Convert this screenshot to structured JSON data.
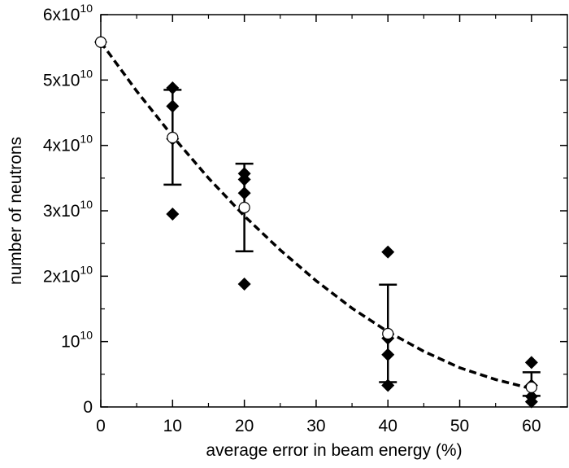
{
  "chart_data": {
    "type": "scatter",
    "xlabel": "average error in beam energy (%)",
    "ylabel": "number of neutrons",
    "xlim": [
      0,
      65
    ],
    "ylim": [
      0,
      60000000000.0
    ],
    "grid": false,
    "x_ticks": [
      {
        "value": 0,
        "label": "0"
      },
      {
        "value": 10,
        "label": "10"
      },
      {
        "value": 20,
        "label": "20"
      },
      {
        "value": 30,
        "label": "30"
      },
      {
        "value": 40,
        "label": "40"
      },
      {
        "value": 50,
        "label": "50"
      },
      {
        "value": 60,
        "label": "60"
      }
    ],
    "y_ticks": [
      {
        "value": 0,
        "mantissa": "",
        "base": "0",
        "exp": ""
      },
      {
        "value": 10000000000.0,
        "mantissa": "",
        "base": "10",
        "exp": "10"
      },
      {
        "value": 20000000000.0,
        "mantissa": "2x",
        "base": "10",
        "exp": "10"
      },
      {
        "value": 30000000000.0,
        "mantissa": "3x",
        "base": "10",
        "exp": "10"
      },
      {
        "value": 40000000000.0,
        "mantissa": "4x",
        "base": "10",
        "exp": "10"
      },
      {
        "value": 50000000000.0,
        "mantissa": "5x",
        "base": "10",
        "exp": "10"
      },
      {
        "value": 60000000000.0,
        "mantissa": "6x",
        "base": "10",
        "exp": "10"
      }
    ],
    "individual_points": {
      "marker": "diamond",
      "color": "#000000",
      "points": [
        {
          "x": 0,
          "y": 55800000000.0
        },
        {
          "x": 10,
          "y": 48800000000.0
        },
        {
          "x": 10,
          "y": 46000000000.0
        },
        {
          "x": 10,
          "y": 41000000000.0
        },
        {
          "x": 10,
          "y": 29500000000.0
        },
        {
          "x": 20,
          "y": 35700000000.0
        },
        {
          "x": 20,
          "y": 34800000000.0
        },
        {
          "x": 20,
          "y": 32700000000.0
        },
        {
          "x": 20,
          "y": 18800000000.0
        },
        {
          "x": 40,
          "y": 23700000000.0
        },
        {
          "x": 40,
          "y": 10500000000.0
        },
        {
          "x": 40,
          "y": 8000000000.0
        },
        {
          "x": 40,
          "y": 3300000000.0
        },
        {
          "x": 60,
          "y": 6800000000.0
        },
        {
          "x": 60,
          "y": 3300000000.0
        },
        {
          "x": 60,
          "y": 1600000000.0
        },
        {
          "x": 60,
          "y": 800000000.0
        }
      ]
    },
    "mean_points": {
      "marker": "open-circle",
      "points": [
        {
          "x": 0,
          "y": 55800000000.0
        },
        {
          "x": 10,
          "y": 41200000000.0,
          "err_low": 34000000000.0,
          "err_high": 48500000000.0
        },
        {
          "x": 20,
          "y": 30500000000.0,
          "err_low": 23800000000.0,
          "err_high": 37200000000.0
        },
        {
          "x": 40,
          "y": 11200000000.0,
          "err_low": 3800000000.0,
          "err_high": 18700000000.0
        },
        {
          "x": 60,
          "y": 3000000000.0,
          "err_low": 1700000000.0,
          "err_high": 5300000000.0
        }
      ]
    },
    "fit_curve": {
      "style": "dashed",
      "points": [
        {
          "x": 0,
          "y": 55800000000.0
        },
        {
          "x": 5,
          "y": 48300000000.0
        },
        {
          "x": 10,
          "y": 41400000000.0
        },
        {
          "x": 15,
          "y": 35000000000.0
        },
        {
          "x": 20,
          "y": 29200000000.0
        },
        {
          "x": 25,
          "y": 24000000000.0
        },
        {
          "x": 30,
          "y": 19300000000.0
        },
        {
          "x": 35,
          "y": 15100000000.0
        },
        {
          "x": 40,
          "y": 11500000000.0
        },
        {
          "x": 45,
          "y": 8500000000.0
        },
        {
          "x": 50,
          "y": 6000000000.0
        },
        {
          "x": 55,
          "y": 4200000000.0
        },
        {
          "x": 60,
          "y": 2800000000.0
        }
      ]
    }
  }
}
